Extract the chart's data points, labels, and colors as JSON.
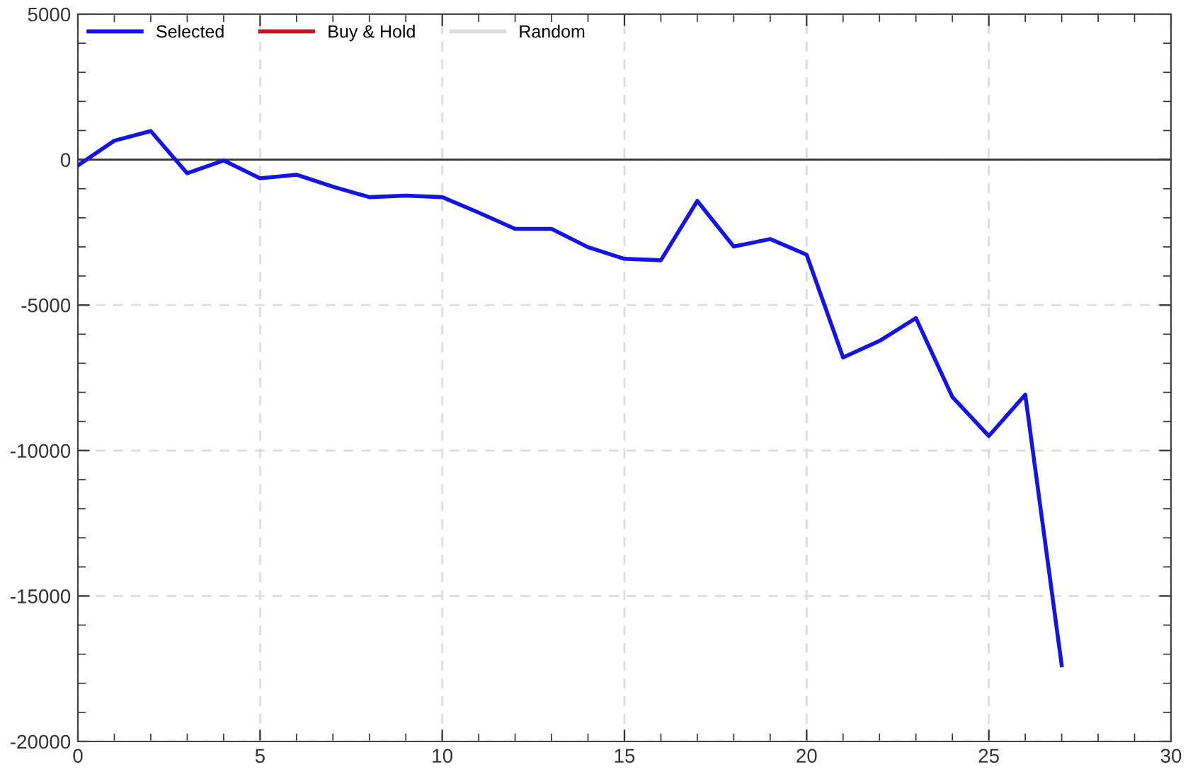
{
  "chart_data": {
    "type": "line",
    "x": [
      0,
      1,
      2,
      3,
      4,
      5,
      6,
      7,
      8,
      9,
      10,
      11,
      12,
      13,
      14,
      15,
      16,
      17,
      18,
      19,
      20,
      21,
      22,
      23,
      24,
      25,
      26,
      27
    ],
    "series": [
      {
        "name": "Selected",
        "color": "#1515e0",
        "values": [
          -200,
          650,
          980,
          -470,
          -30,
          -640,
          -520,
          -930,
          -1290,
          -1240,
          -1290,
          -1820,
          -2380,
          -2380,
          -3010,
          -3410,
          -3460,
          -1420,
          -2990,
          -2730,
          -3270,
          -6800,
          -6230,
          -5450,
          -8160,
          -9500,
          -8080,
          -17380
        ]
      },
      {
        "name": "Buy & Hold",
        "color": "#b22222",
        "values": [
          null,
          null,
          null,
          null,
          null,
          null,
          null,
          null,
          null,
          null,
          null,
          null,
          null,
          null,
          null,
          null,
          null,
          null,
          null,
          null,
          null,
          null,
          null,
          null,
          null,
          null,
          null,
          null
        ]
      },
      {
        "name": "Random",
        "color": "#dddddd",
        "values": [
          null,
          null,
          null,
          null,
          null,
          null,
          null,
          null,
          null,
          null,
          null,
          null,
          null,
          null,
          null,
          null,
          null,
          null,
          null,
          null,
          null,
          null,
          null,
          null,
          null,
          null,
          null,
          null
        ]
      }
    ],
    "xlim": [
      0,
      30
    ],
    "xticks": [
      0,
      5,
      10,
      15,
      20,
      25,
      30
    ],
    "ylim": [
      -20000,
      5000
    ],
    "yticks": [
      -20000,
      -15000,
      -10000,
      -5000,
      0,
      5000
    ],
    "ref_lines": [
      {
        "axis": "y",
        "value": 0,
        "color": "#333333",
        "line_style": "solid"
      }
    ],
    "grid": true,
    "legend": "top left",
    "marker": "none",
    "line_style": "solid"
  }
}
